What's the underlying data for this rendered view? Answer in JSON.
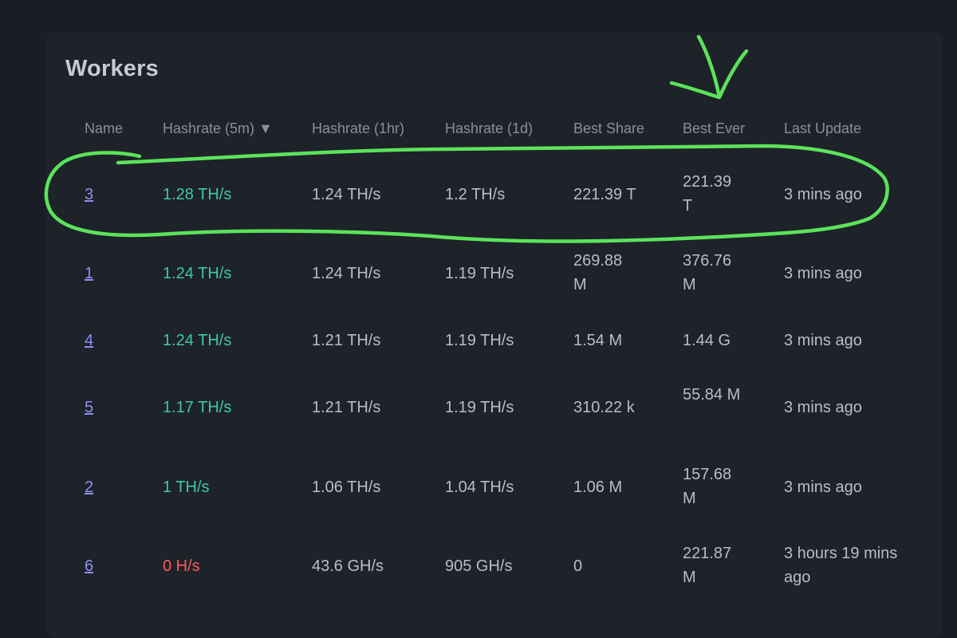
{
  "title": "Workers",
  "columns": {
    "name": "Name",
    "h5m": "Hashrate (5m)",
    "sort": "▼",
    "h1h": "Hashrate (1hr)",
    "h1d": "Hashrate (1d)",
    "best_share": "Best Share",
    "best_ever": "Best Ever",
    "last_update": "Last Update"
  },
  "rows": [
    {
      "name": "3",
      "h5m": "1.28 TH/s",
      "h1h": "1.24 TH/s",
      "h1d": "1.2 TH/s",
      "best_share": "221.39 T",
      "best_ever": "221.39 T",
      "last_update": "3 mins ago"
    },
    {
      "name": "1",
      "h5m": "1.24 TH/s",
      "h1h": "1.24 TH/s",
      "h1d": "1.19 TH/s",
      "best_share": "269.88 M",
      "best_ever": "376.76 M",
      "last_update": "3 mins ago"
    },
    {
      "name": "4",
      "h5m": "1.24 TH/s",
      "h1h": "1.21 TH/s",
      "h1d": "1.19 TH/s",
      "best_share": "1.54 M",
      "best_ever": "1.44 G",
      "last_update": "3 mins ago"
    },
    {
      "name": "5",
      "h5m": "1.17 TH/s",
      "h1h": "1.21 TH/s",
      "h1d": "1.19 TH/s",
      "best_share": "310.22 k",
      "best_ever": "55.84 M",
      "last_update": "3 mins ago"
    },
    {
      "name": "2",
      "h5m": "1 TH/s",
      "h1h": "1.06 TH/s",
      "h1d": "1.04 TH/s",
      "best_share": "1.06 M",
      "best_ever": "157.68 M",
      "last_update": "3 mins ago"
    },
    {
      "name": "6",
      "h5m": "0 H/s",
      "h1h": "43.6 GH/s",
      "h1d": "905 GH/s",
      "best_share": "0",
      "best_ever": "221.87 M",
      "last_update": "3 hours 19 mins ago"
    }
  ],
  "colors": {
    "background": "#1a1e24",
    "card": "#1e2229",
    "hashrate_active": "#3fc7b0",
    "hashrate_zero": "#ff5a5a",
    "link": "#8f90f5",
    "annotation": "#5be35b"
  }
}
